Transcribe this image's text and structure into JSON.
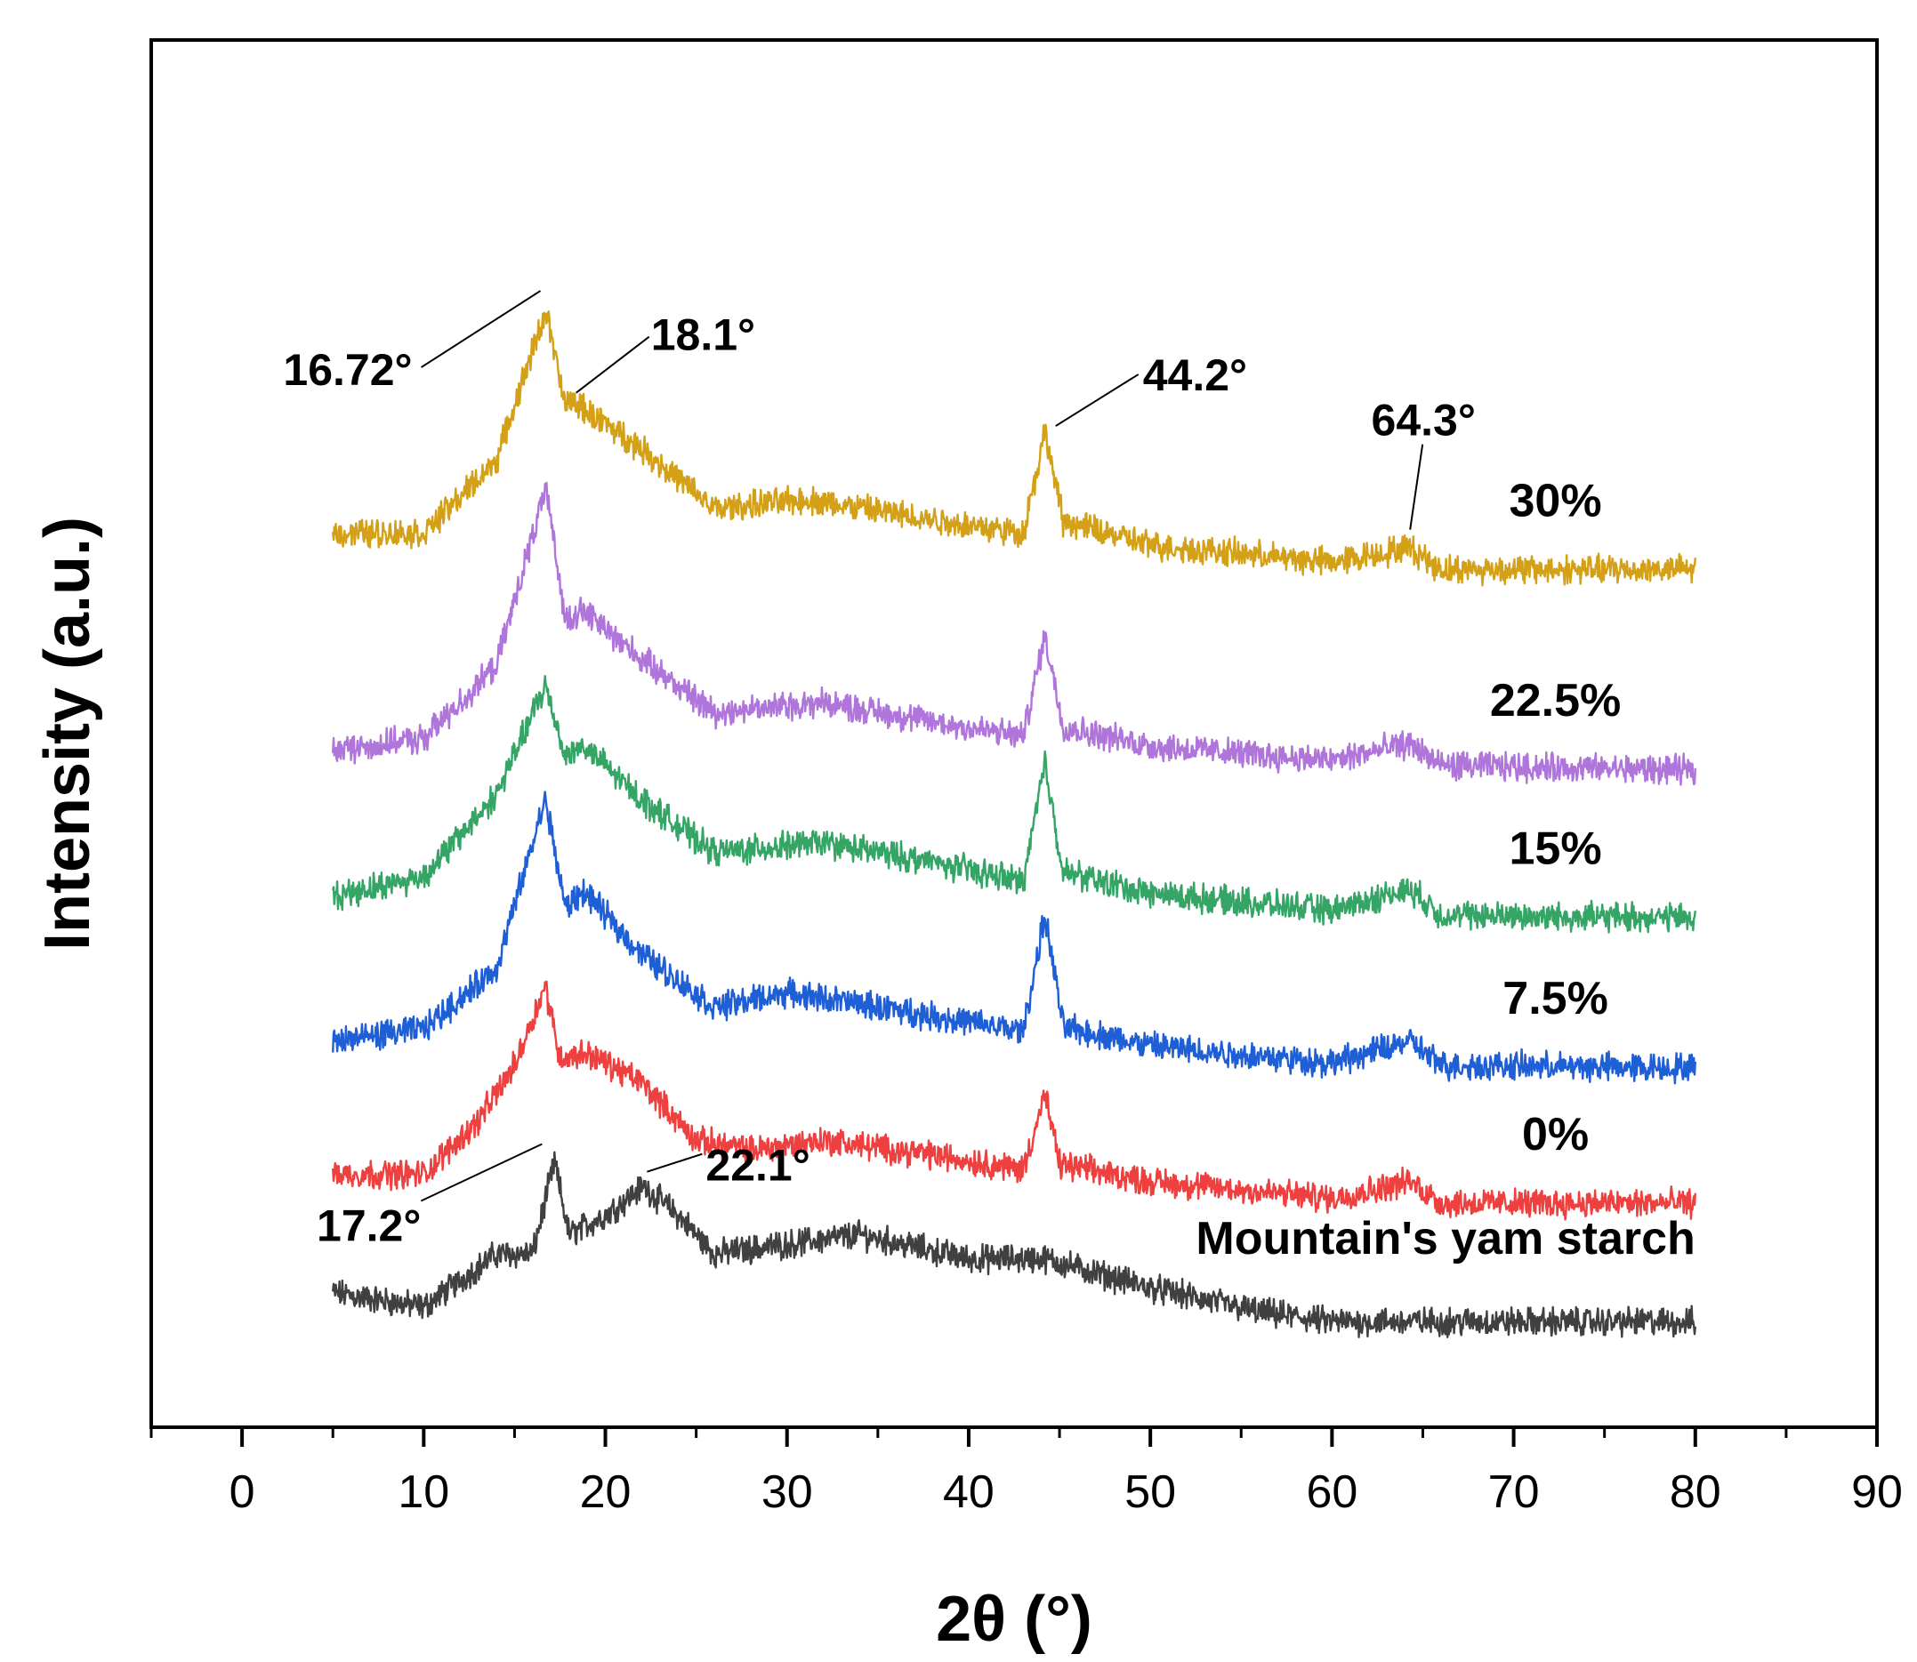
{
  "chart_data": {
    "type": "line",
    "title": "",
    "xlabel": "2θ (°)",
    "ylabel": "Intensity (a.u.)",
    "xlim": [
      -5,
      90
    ],
    "xticks": [
      0,
      10,
      20,
      30,
      40,
      50,
      60,
      70,
      80,
      90
    ],
    "xtick_labels": [
      "0",
      "10",
      "20",
      "30",
      "40",
      "50",
      "60",
      "70",
      "80",
      "90"
    ],
    "y_ticks_shown": false,
    "legend": "inline labels, right side",
    "x_range_measured": [
      5,
      80
    ],
    "series": [
      {
        "name": "Mountain's yam starch",
        "color": "#404040",
        "baseline": 0.0,
        "profile": [
          [
            5,
            0.06
          ],
          [
            10,
            0.0
          ],
          [
            14,
            0.22
          ],
          [
            16,
            0.22
          ],
          [
            17.2,
            0.6
          ],
          [
            18,
            0.3
          ],
          [
            20,
            0.38
          ],
          [
            22.1,
            0.5
          ],
          [
            24,
            0.38
          ],
          [
            26,
            0.22
          ],
          [
            30,
            0.26
          ],
          [
            34,
            0.3
          ],
          [
            40,
            0.2
          ],
          [
            44.2,
            0.2
          ],
          [
            50,
            0.08
          ],
          [
            56,
            -0.02
          ],
          [
            60,
            -0.06
          ],
          [
            70,
            -0.06
          ],
          [
            80,
            -0.06
          ]
        ]
      },
      {
        "name": "0%",
        "color": "#ef4040",
        "baseline": 0.55,
        "profile": [
          [
            5,
            0.0
          ],
          [
            10,
            0.0
          ],
          [
            13,
            0.22
          ],
          [
            15,
            0.45
          ],
          [
            16.7,
            0.78
          ],
          [
            17.5,
            0.48
          ],
          [
            19,
            0.5
          ],
          [
            22,
            0.38
          ],
          [
            25,
            0.14
          ],
          [
            28,
            0.1
          ],
          [
            32,
            0.14
          ],
          [
            38,
            0.08
          ],
          [
            43,
            0.02
          ],
          [
            44.2,
            0.33
          ],
          [
            45,
            0.04
          ],
          [
            50,
            -0.03
          ],
          [
            60,
            -0.1
          ],
          [
            64.3,
            -0.03
          ],
          [
            66,
            -0.12
          ],
          [
            80,
            -0.12
          ]
        ]
      },
      {
        "name": "7.5%",
        "color": "#1f5fd6",
        "baseline": 1.1,
        "profile": [
          [
            5,
            0.0
          ],
          [
            10,
            0.05
          ],
          [
            14,
            0.3
          ],
          [
            16.7,
            1.0
          ],
          [
            17.8,
            0.55
          ],
          [
            18.8,
            0.62
          ],
          [
            22,
            0.36
          ],
          [
            26,
            0.14
          ],
          [
            30,
            0.2
          ],
          [
            36,
            0.13
          ],
          [
            43,
            0.04
          ],
          [
            44.2,
            0.52
          ],
          [
            45.2,
            0.06
          ],
          [
            50,
            -0.02
          ],
          [
            60,
            -0.09
          ],
          [
            64.3,
            0.0
          ],
          [
            66,
            -0.1
          ],
          [
            80,
            -0.11
          ]
        ]
      },
      {
        "name": "15%",
        "color": "#35a566",
        "baseline": 1.7,
        "profile": [
          [
            5,
            0.0
          ],
          [
            10,
            0.08
          ],
          [
            14,
            0.42
          ],
          [
            16.7,
            0.87
          ],
          [
            17.8,
            0.58
          ],
          [
            18.8,
            0.62
          ],
          [
            22,
            0.4
          ],
          [
            26,
            0.18
          ],
          [
            32,
            0.22
          ],
          [
            38,
            0.14
          ],
          [
            43,
            0.06
          ],
          [
            44.2,
            0.55
          ],
          [
            45.2,
            0.1
          ],
          [
            50,
            0.01
          ],
          [
            60,
            -0.06
          ],
          [
            64.3,
            0.03
          ],
          [
            66,
            -0.08
          ],
          [
            80,
            -0.09
          ]
        ]
      },
      {
        "name": "22.5%",
        "color": "#b075db",
        "baseline": 2.3,
        "profile": [
          [
            5,
            0.0
          ],
          [
            10,
            0.05
          ],
          [
            14,
            0.35
          ],
          [
            16.7,
            1.08
          ],
          [
            17.8,
            0.55
          ],
          [
            18.8,
            0.58
          ],
          [
            22,
            0.38
          ],
          [
            26,
            0.16
          ],
          [
            32,
            0.2
          ],
          [
            38,
            0.12
          ],
          [
            43,
            0.06
          ],
          [
            44.2,
            0.48
          ],
          [
            45.2,
            0.1
          ],
          [
            50,
            0.02
          ],
          [
            60,
            -0.04
          ],
          [
            64.3,
            0.03
          ],
          [
            66,
            -0.06
          ],
          [
            80,
            -0.08
          ]
        ]
      },
      {
        "name": "30%",
        "color": "#d4a017",
        "baseline": 3.2,
        "profile": [
          [
            5,
            0.0
          ],
          [
            10,
            0.0
          ],
          [
            14,
            0.3
          ],
          [
            16.72,
            0.92
          ],
          [
            17.8,
            0.52
          ],
          [
            18.1,
            0.55
          ],
          [
            22,
            0.35
          ],
          [
            26,
            0.1
          ],
          [
            31,
            0.14
          ],
          [
            36,
            0.08
          ],
          [
            43,
            0.0
          ],
          [
            44.2,
            0.42
          ],
          [
            45.2,
            0.05
          ],
          [
            50,
            -0.05
          ],
          [
            60,
            -0.12
          ],
          [
            64.3,
            -0.06
          ],
          [
            66,
            -0.15
          ],
          [
            80,
            -0.15
          ]
        ]
      }
    ],
    "annotations": [
      {
        "text": "16.72°",
        "x": 16.72,
        "series": "30%"
      },
      {
        "text": "18.1°",
        "x": 18.1,
        "series": "30%"
      },
      {
        "text": "44.2°",
        "x": 44.2,
        "series": "30%"
      },
      {
        "text": "64.3°",
        "x": 64.3,
        "series": "30%"
      },
      {
        "text": "17.2°",
        "x": 17.2,
        "series": "Mountain's yam starch"
      },
      {
        "text": "22.1°",
        "x": 22.1,
        "series": "Mountain's yam starch"
      }
    ]
  }
}
